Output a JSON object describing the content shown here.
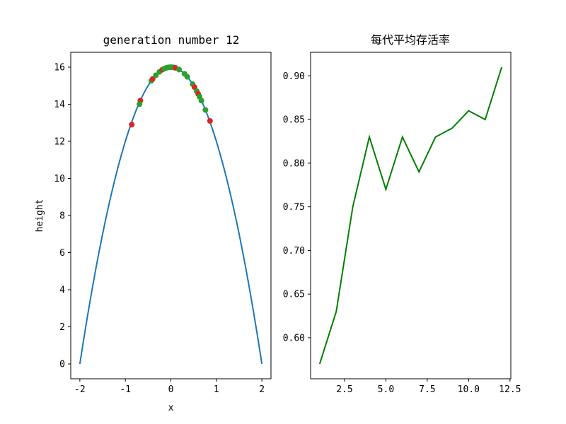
{
  "chart_data": [
    {
      "type": "line+scatter",
      "title": "generation number 12",
      "xlabel": "x",
      "ylabel": "height",
      "xlim": [
        -2.2,
        2.2
      ],
      "ylim": [
        -0.8,
        16.8
      ],
      "xticks": [
        -2,
        -1,
        0,
        1,
        2
      ],
      "xtick_labels": [
        "-2",
        "-1",
        "0",
        "1",
        "2"
      ],
      "yticks": [
        0,
        2,
        4,
        6,
        8,
        10,
        12,
        14,
        16
      ],
      "ytick_labels": [
        "0",
        "2",
        "4",
        "6",
        "8",
        "10",
        "12",
        "14",
        "16"
      ],
      "curve": {
        "function": "16 - 4*x^2",
        "x_range": [
          -2,
          2
        ],
        "color": "#1f77b4"
      },
      "points": [
        {
          "x": -0.86,
          "y": 12.9,
          "color": "#d62728"
        },
        {
          "x": -0.67,
          "y": 14.2,
          "color": "#d62728"
        },
        {
          "x": -0.69,
          "y": 14.0,
          "color": "#2ca02c"
        },
        {
          "x": -0.43,
          "y": 15.26,
          "color": "#2ca02c"
        },
        {
          "x": -0.4,
          "y": 15.36,
          "color": "#d62728"
        },
        {
          "x": -0.33,
          "y": 15.56,
          "color": "#2ca02c"
        },
        {
          "x": -0.25,
          "y": 15.75,
          "color": "#2ca02c"
        },
        {
          "x": -0.19,
          "y": 15.86,
          "color": "#d62728"
        },
        {
          "x": -0.15,
          "y": 15.91,
          "color": "#2ca02c"
        },
        {
          "x": -0.1,
          "y": 15.96,
          "color": "#2ca02c"
        },
        {
          "x": -0.05,
          "y": 15.99,
          "color": "#2ca02c"
        },
        {
          "x": 0.0,
          "y": 16.0,
          "color": "#2ca02c"
        },
        {
          "x": 0.05,
          "y": 15.99,
          "color": "#2ca02c"
        },
        {
          "x": 0.1,
          "y": 15.96,
          "color": "#d62728"
        },
        {
          "x": 0.18,
          "y": 15.87,
          "color": "#2ca02c"
        },
        {
          "x": 0.3,
          "y": 15.64,
          "color": "#2ca02c"
        },
        {
          "x": 0.36,
          "y": 15.48,
          "color": "#2ca02c"
        },
        {
          "x": 0.48,
          "y": 15.08,
          "color": "#2ca02c"
        },
        {
          "x": 0.52,
          "y": 14.92,
          "color": "#d62728"
        },
        {
          "x": 0.57,
          "y": 14.7,
          "color": "#2ca02c"
        },
        {
          "x": 0.6,
          "y": 14.56,
          "color": "#d62728"
        },
        {
          "x": 0.63,
          "y": 14.41,
          "color": "#2ca02c"
        },
        {
          "x": 0.67,
          "y": 14.2,
          "color": "#2ca02c"
        },
        {
          "x": 0.76,
          "y": 13.69,
          "color": "#2ca02c"
        },
        {
          "x": 0.86,
          "y": 13.1,
          "color": "#d62728"
        }
      ]
    },
    {
      "type": "line",
      "title": "每代平均存活率",
      "xlabel": "",
      "ylabel": "",
      "xlim": [
        0.45,
        12.55
      ],
      "ylim": [
        0.553,
        0.927
      ],
      "xticks": [
        2.5,
        5.0,
        7.5,
        10.0,
        12.5
      ],
      "xtick_labels": [
        "2.5",
        "5.0",
        "7.5",
        "10.0",
        "12.5"
      ],
      "yticks": [
        0.6,
        0.65,
        0.7,
        0.75,
        0.8,
        0.85,
        0.9
      ],
      "ytick_labels": [
        "0.60",
        "0.65",
        "0.70",
        "0.75",
        "0.80",
        "0.85",
        "0.90"
      ],
      "x": [
        1,
        2,
        3,
        4,
        5,
        6,
        7,
        8,
        9,
        10,
        11,
        12
      ],
      "values": [
        0.57,
        0.63,
        0.75,
        0.83,
        0.77,
        0.83,
        0.79,
        0.83,
        0.84,
        0.86,
        0.85,
        0.91
      ],
      "color": "#008000"
    }
  ]
}
